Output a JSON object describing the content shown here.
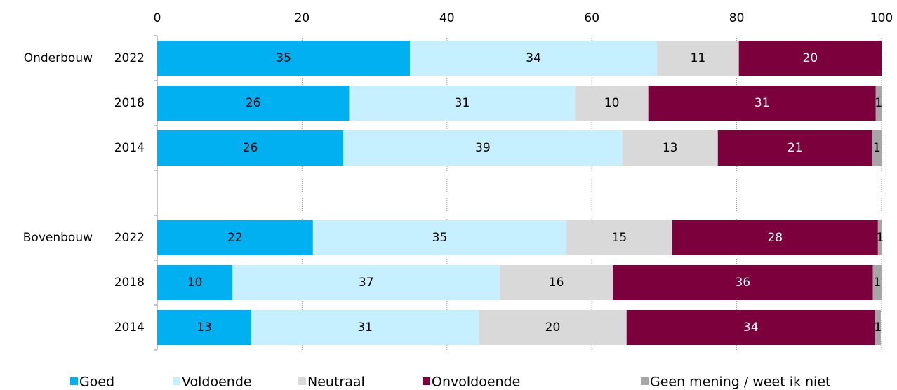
{
  "chart_data": {
    "type": "stacked-barh",
    "categories": [
      "2022",
      "2018",
      "2014",
      null,
      "2022",
      "2018",
      "2014"
    ],
    "group_labels": [
      "Onderbouw",
      null,
      null,
      null,
      "Bovenbouw",
      null,
      null
    ],
    "series": [
      {
        "name": "Goed",
        "color": "#00b0f0",
        "values": [
          34.9,
          26.5,
          25.7,
          null,
          21.5,
          10.4,
          13.0
        ],
        "value_labels": [
          "35",
          "26",
          "26",
          null,
          "22",
          "10",
          "13"
        ]
      },
      {
        "name": "Voldoende",
        "color": "#c6efff",
        "values": [
          34.1,
          31.2,
          38.5,
          null,
          35.0,
          36.9,
          31.4
        ],
        "value_labels": [
          "34",
          "31",
          "39",
          null,
          "35",
          "37",
          "31"
        ]
      },
      {
        "name": "Neutraal",
        "color": "#d9d9d9",
        "values": [
          11.3,
          10.1,
          13.2,
          null,
          14.6,
          15.6,
          20.4
        ],
        "value_labels": [
          "11",
          "10",
          "13",
          null,
          "15",
          "16",
          "20"
        ]
      },
      {
        "name": "Onvoldoende",
        "color": "#7b003c",
        "values": [
          19.7,
          31.4,
          21.3,
          null,
          28.4,
          35.9,
          34.3
        ],
        "value_labels": [
          "20",
          "31",
          "21",
          null,
          "28",
          "36",
          "34"
        ]
      },
      {
        "name": "Geen mening / weet ik niet",
        "color": "#a6a6a6",
        "values": [
          null,
          0.8,
          1.3,
          null,
          0.6,
          1.2,
          0.8
        ],
        "value_labels": [
          null,
          "1",
          "1",
          null,
          "1",
          "1",
          "1"
        ]
      }
    ],
    "xlim": [
      0,
      100
    ],
    "xticks": [
      0,
      20,
      40,
      60,
      80,
      100
    ],
    "grid": true
  }
}
